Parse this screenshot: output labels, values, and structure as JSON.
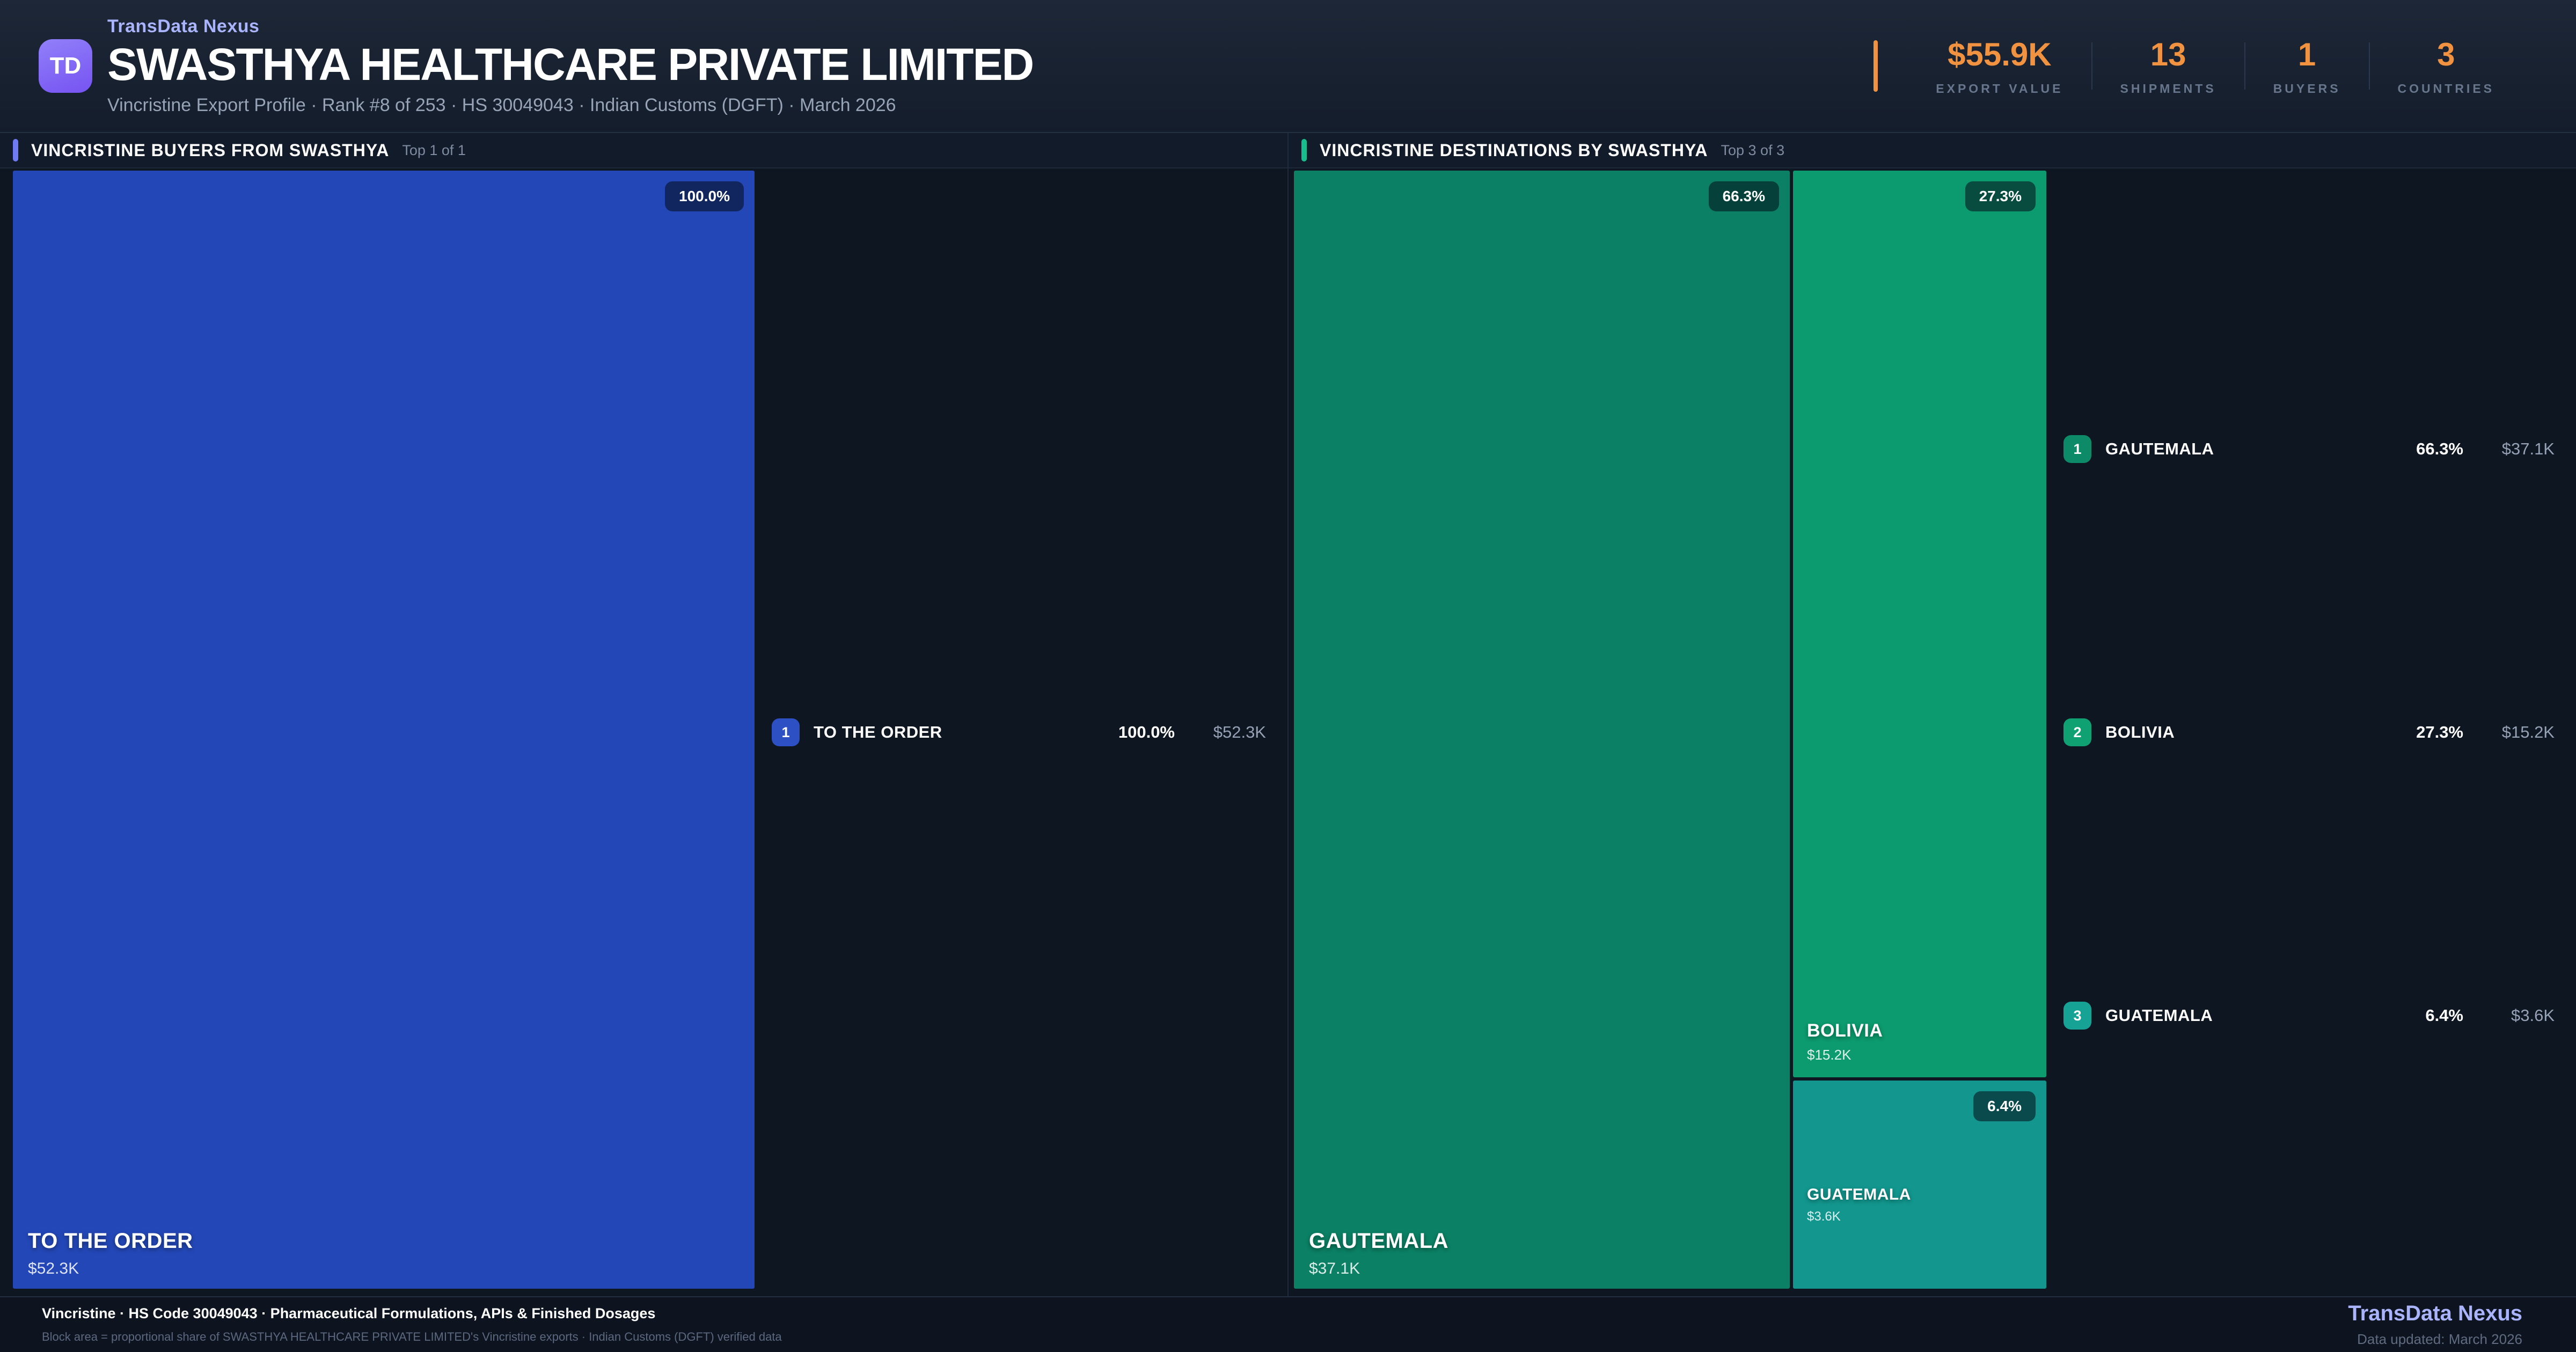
{
  "header": {
    "brand": "TransData Nexus",
    "logo": "TD",
    "title": "SWASTHYA HEALTHCARE PRIVATE LIMITED",
    "subtitle": "Vincristine Export Profile · Rank #8 of 253 · HS 30049043 · Indian Customs (DGFT) · March 2026",
    "stats": [
      {
        "value": "$55.9K",
        "label": "EXPORT VALUE"
      },
      {
        "value": "13",
        "label": "SHIPMENTS"
      },
      {
        "value": "1",
        "label": "BUYERS"
      },
      {
        "value": "3",
        "label": "COUNTRIES"
      }
    ],
    "accent_color": "#f0923f"
  },
  "buyers_panel": {
    "title": "VINCRISTINE BUYERS FROM SWASTHYA",
    "top_label": "Top 1 of 1",
    "accent_color": "#6f7bf4",
    "items": [
      {
        "rank": "1",
        "name": "TO THE ORDER",
        "share": "100.0%",
        "value": "$52.3K",
        "color": "#2347b7"
      }
    ]
  },
  "destinations_panel": {
    "title": "VINCRISTINE DESTINATIONS BY SWASTHYA",
    "top_label": "Top 3 of 3",
    "accent_color": "#17bd8d",
    "items": [
      {
        "rank": "1",
        "name": "GAUTEMALA",
        "share": "66.3%",
        "value": "$37.1K",
        "color": "#0b8064"
      },
      {
        "rank": "2",
        "name": "BOLIVIA",
        "share": "27.3%",
        "value": "$15.2K",
        "color": "#0c9b6e"
      },
      {
        "rank": "3",
        "name": "GUATEMALA",
        "share": "6.4%",
        "value": "$3.6K",
        "color": "#12968d"
      }
    ]
  },
  "footer": {
    "title": "Vincristine · HS Code 30049043 · Pharmaceutical Formulations, APIs & Finished Dosages",
    "note": "Block area = proportional share of SWASTHYA HEALTHCARE PRIVATE LIMITED's Vincristine exports · Indian Customs (DGFT) verified data",
    "brand": "TransData Nexus",
    "updated": "Data updated: March 2026"
  },
  "chart_data": [
    {
      "type": "treemap",
      "title": "VINCRISTINE BUYERS FROM SWASTHYA",
      "subtitle": "Top 1 of 1",
      "items": [
        {
          "label": "TO THE ORDER",
          "value_usd": 52300,
          "share_pct": 100.0,
          "color": "#2347b7"
        }
      ]
    },
    {
      "type": "treemap",
      "title": "VINCRISTINE DESTINATIONS BY SWASTHYA",
      "subtitle": "Top 3 of 3",
      "items": [
        {
          "label": "GAUTEMALA",
          "value_usd": 37100,
          "share_pct": 66.3,
          "color": "#0b8064"
        },
        {
          "label": "BOLIVIA",
          "value_usd": 15200,
          "share_pct": 27.3,
          "color": "#0c9b6e"
        },
        {
          "label": "GUATEMALA",
          "value_usd": 3600,
          "share_pct": 6.4,
          "color": "#12968d"
        }
      ]
    }
  ]
}
